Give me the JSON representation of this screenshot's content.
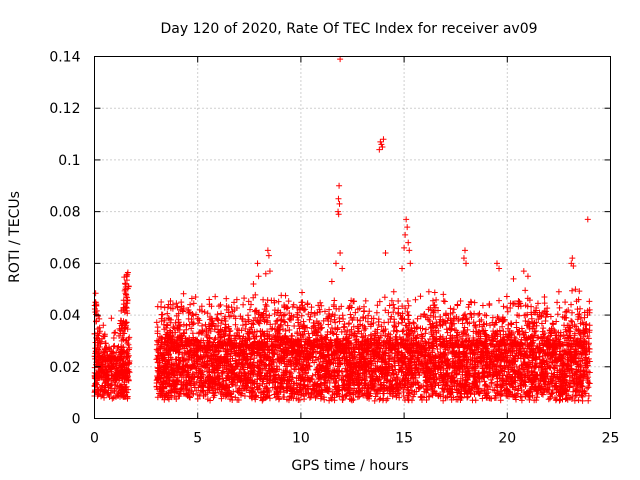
{
  "chart_data": {
    "type": "scatter",
    "title": "Day 120 of 2020, Rate Of TEC Index for receiver av09",
    "xlabel": "GPS time / hours",
    "ylabel": "ROTI / TECUs",
    "xlim": [
      0,
      25
    ],
    "ylim": [
      0,
      0.14
    ],
    "xticks": [
      0,
      5,
      10,
      15,
      20,
      25
    ],
    "yticks": [
      0,
      0.02,
      0.04,
      0.06,
      0.08,
      0.1,
      0.12,
      0.14
    ],
    "xtick_labels": [
      "0",
      "5",
      "10",
      "15",
      "20",
      "25"
    ],
    "ytick_labels": [
      "0",
      "0.02",
      "0.04",
      "0.06",
      "0.08",
      "0.1",
      "0.12",
      "0.14"
    ],
    "grid": true,
    "marker": "+",
    "color": "#ff0000",
    "series": [
      {
        "name": "ROTI",
        "segments": [
          {
            "x_range": [
              0.0,
              1.7
            ],
            "base": 0.016,
            "spread": 0.012,
            "peaks": [
              [
                0.0,
                0.052
              ],
              [
                0.05,
                0.045
              ],
              [
                0.15,
                0.04
              ],
              [
                0.2,
                0.039
              ],
              [
                1.3,
                0.043
              ],
              [
                1.4,
                0.051
              ],
              [
                1.5,
                0.055
              ],
              [
                1.6,
                0.058
              ],
              [
                1.55,
                0.052
              ]
            ]
          },
          {
            "x_range": [
              3.0,
              24.0
            ],
            "base": 0.018,
            "spread": 0.016,
            "peaks": []
          }
        ],
        "outliers": [
          [
            3.8,
            0.044
          ],
          [
            4.2,
            0.045
          ],
          [
            4.9,
            0.047
          ],
          [
            5.1,
            0.042
          ],
          [
            6.5,
            0.041
          ],
          [
            7.2,
            0.044
          ],
          [
            7.7,
            0.052
          ],
          [
            7.9,
            0.06
          ],
          [
            7.95,
            0.055
          ],
          [
            8.3,
            0.056
          ],
          [
            8.4,
            0.065
          ],
          [
            8.45,
            0.063
          ],
          [
            8.5,
            0.057
          ],
          [
            9.2,
            0.043
          ],
          [
            10.5,
            0.041
          ],
          [
            11.5,
            0.053
          ],
          [
            11.7,
            0.06
          ],
          [
            11.8,
            0.08
          ],
          [
            11.82,
            0.085
          ],
          [
            11.85,
            0.09
          ],
          [
            11.83,
            0.079
          ],
          [
            11.87,
            0.083
          ],
          [
            11.9,
            0.139
          ],
          [
            11.9,
            0.064
          ],
          [
            12.0,
            0.058
          ],
          [
            13.8,
            0.104
          ],
          [
            13.85,
            0.107
          ],
          [
            13.9,
            0.106
          ],
          [
            13.95,
            0.105
          ],
          [
            14.0,
            0.108
          ],
          [
            14.1,
            0.064
          ],
          [
            14.5,
            0.049
          ],
          [
            14.9,
            0.058
          ],
          [
            15.0,
            0.066
          ],
          [
            15.05,
            0.071
          ],
          [
            15.1,
            0.077
          ],
          [
            15.15,
            0.074
          ],
          [
            15.2,
            0.068
          ],
          [
            15.25,
            0.065
          ],
          [
            15.3,
            0.06
          ],
          [
            16.2,
            0.049
          ],
          [
            16.9,
            0.048
          ],
          [
            17.9,
            0.062
          ],
          [
            17.95,
            0.065
          ],
          [
            18.0,
            0.06
          ],
          [
            19.5,
            0.06
          ],
          [
            19.6,
            0.058
          ],
          [
            20.3,
            0.054
          ],
          [
            20.8,
            0.057
          ],
          [
            21.0,
            0.055
          ],
          [
            21.8,
            0.047
          ],
          [
            22.5,
            0.049
          ],
          [
            23.1,
            0.06
          ],
          [
            23.15,
            0.062
          ],
          [
            23.2,
            0.059
          ],
          [
            23.3,
            0.05
          ],
          [
            23.9,
            0.077
          ],
          [
            23.95,
            0.031
          ],
          [
            22.8,
            0.045
          ]
        ]
      }
    ]
  }
}
